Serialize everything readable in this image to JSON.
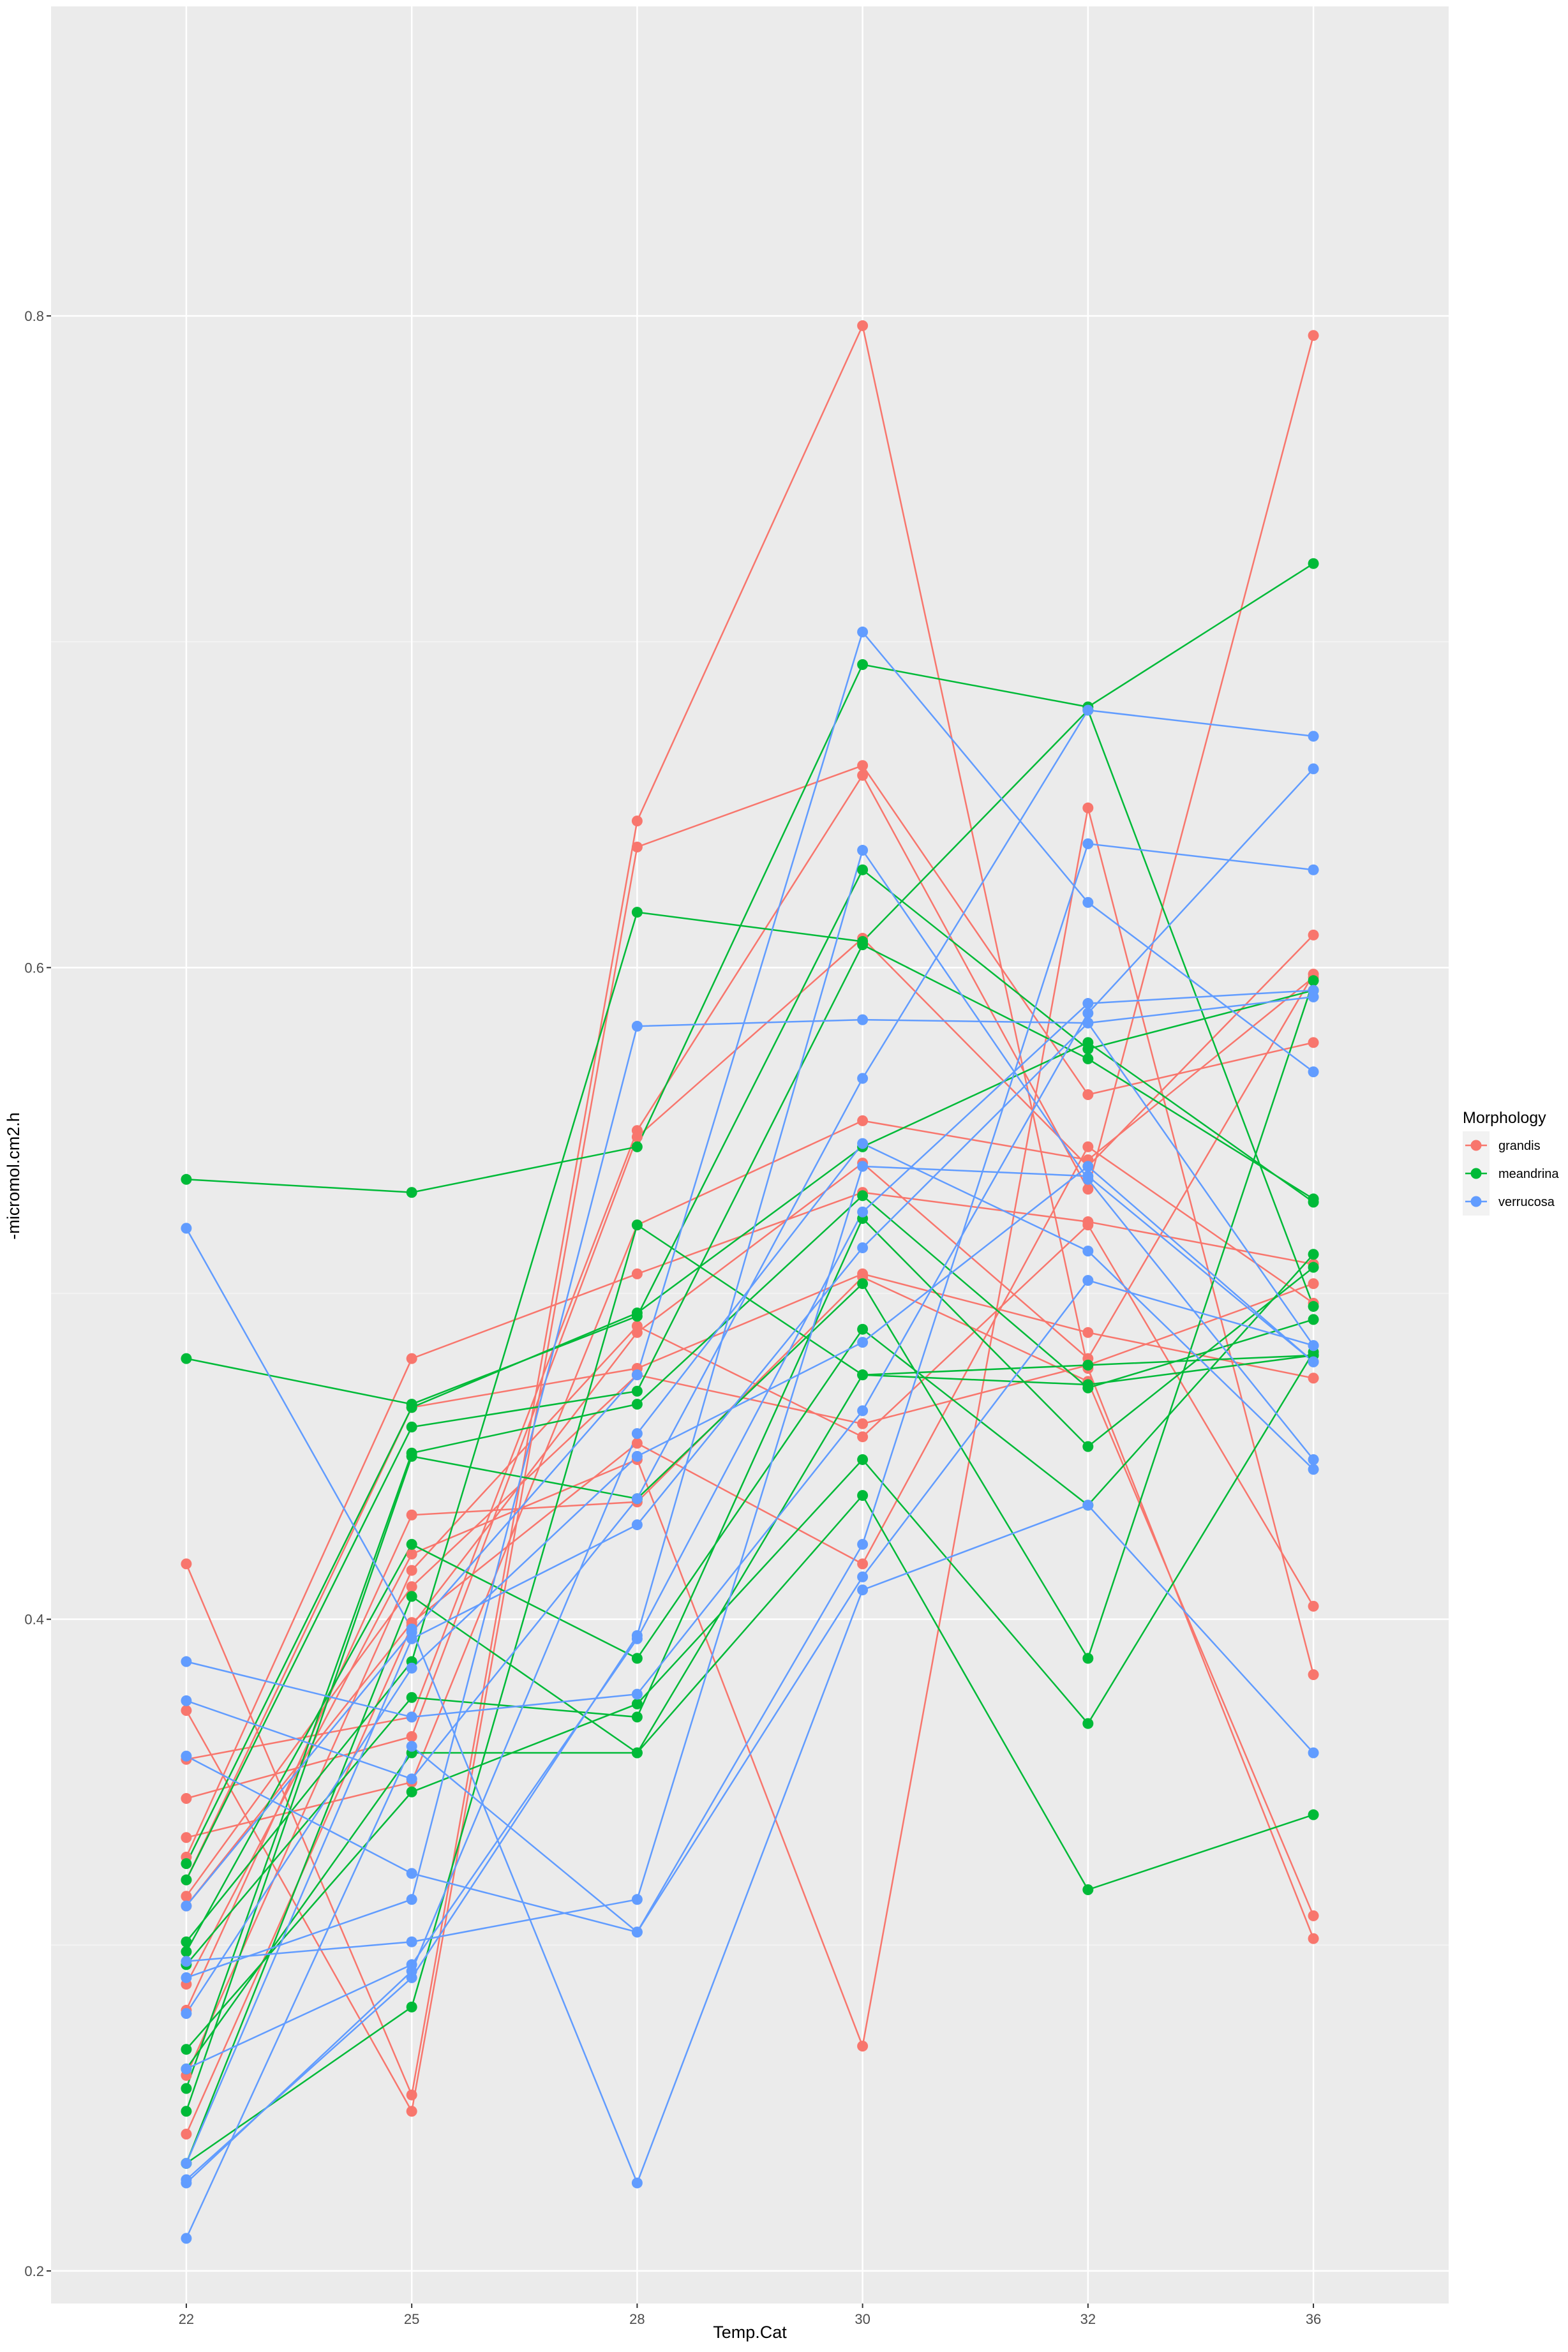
{
  "chart_data": {
    "type": "line",
    "xlabel": "Temp.Cat",
    "ylabel": "-micromol.cm2.h",
    "x": [
      22,
      25,
      28,
      30,
      32,
      36
    ],
    "x_ticks": [
      "22",
      "25",
      "28",
      "30",
      "32",
      "36"
    ],
    "y_ticks": [
      "0.2",
      "0.4",
      "0.6",
      "0.8"
    ],
    "ylim": [
      0.19,
      0.895
    ],
    "grid": true,
    "legend": {
      "title": "Morphology",
      "position": "right",
      "entries": [
        "grandis",
        "meandrina",
        "verrucosa"
      ]
    },
    "colors": {
      "grandis": "#F8766D",
      "meandrina": "#00BA38",
      "verrucosa": "#619CFF"
    },
    "series": [
      {
        "name": "grandis",
        "lines": [
          [
            0.417,
            0.254,
            0.645,
            0.797,
            0.477,
            0.302
          ],
          [
            0.372,
            0.249,
            0.637,
            0.662,
            0.561,
            0.577
          ],
          [
            0.357,
            0.37,
            0.55,
            0.659,
            0.532,
            0.794
          ],
          [
            0.345,
            0.364,
            0.548,
            0.609,
            0.539,
            0.61
          ],
          [
            0.333,
            0.35,
            0.521,
            0.553,
            0.541,
            0.597
          ],
          [
            0.327,
            0.48,
            0.506,
            0.531,
            0.522,
            0.509
          ],
          [
            0.32,
            0.465,
            0.477,
            0.506,
            0.488,
            0.474
          ],
          [
            0.315,
            0.41,
            0.475,
            0.46,
            0.478,
            0.503
          ],
          [
            0.312,
            0.399,
            0.454,
            0.417,
            0.545,
            0.497
          ],
          [
            0.288,
            0.42,
            0.449,
            0.269,
            0.649,
            0.383
          ],
          [
            0.28,
            0.432,
            0.436,
            0.505,
            0.473,
            0.309
          ],
          [
            0.26,
            0.415,
            0.49,
            0.456,
            0.521,
            0.404
          ],
          [
            0.242,
            0.398,
            0.488,
            0.54,
            0.48,
            0.598
          ]
        ]
      },
      {
        "name": "meandrina",
        "lines": [
          [
            0.535,
            0.531,
            0.545,
            0.693,
            0.68,
            0.724
          ],
          [
            0.48,
            0.466,
            0.493,
            0.63,
            0.575,
            0.593
          ],
          [
            0.325,
            0.465,
            0.494,
            0.545,
            0.577,
            0.528
          ],
          [
            0.32,
            0.459,
            0.47,
            0.607,
            0.572,
            0.529
          ],
          [
            0.301,
            0.387,
            0.617,
            0.608,
            0.679,
            0.496
          ],
          [
            0.298,
            0.423,
            0.388,
            0.489,
            0.435,
            0.512
          ],
          [
            0.294,
            0.376,
            0.37,
            0.523,
            0.453,
            0.508
          ],
          [
            0.268,
            0.347,
            0.374,
            0.449,
            0.368,
            0.482
          ],
          [
            0.262,
            0.359,
            0.359,
            0.438,
            0.317,
            0.34
          ],
          [
            0.249,
            0.45,
            0.437,
            0.503,
            0.388,
            0.596
          ],
          [
            0.233,
            0.281,
            0.521,
            0.475,
            0.478,
            0.481
          ],
          [
            0.256,
            0.451,
            0.466,
            0.53,
            0.471,
            0.492
          ],
          [
            0.233,
            0.407,
            0.359,
            0.475,
            0.472,
            0.481
          ]
        ]
      },
      {
        "name": "verrucosa",
        "lines": [
          [
            0.52,
            0.397,
            0.227,
            0.409,
            0.435,
            0.359
          ],
          [
            0.387,
            0.37,
            0.377,
            0.464,
            0.586,
            0.661
          ],
          [
            0.375,
            0.351,
            0.437,
            0.566,
            0.679,
            0.671
          ],
          [
            0.358,
            0.322,
            0.304,
            0.413,
            0.504,
            0.484
          ],
          [
            0.312,
            0.396,
            0.475,
            0.703,
            0.62,
            0.568
          ],
          [
            0.295,
            0.301,
            0.314,
            0.539,
            0.536,
            0.479
          ],
          [
            0.29,
            0.314,
            0.582,
            0.584,
            0.583,
            0.484
          ],
          [
            0.279,
            0.385,
            0.45,
            0.485,
            0.539,
            0.479
          ],
          [
            0.262,
            0.294,
            0.394,
            0.525,
            0.589,
            0.593
          ],
          [
            0.233,
            0.394,
            0.429,
            0.514,
            0.583,
            0.591
          ],
          [
            0.227,
            0.292,
            0.457,
            0.546,
            0.513,
            0.446
          ],
          [
            0.228,
            0.29,
            0.395,
            0.636,
            0.535,
            0.449
          ],
          [
            0.21,
            0.361,
            0.304,
            0.423,
            0.638,
            0.63
          ]
        ]
      }
    ]
  }
}
